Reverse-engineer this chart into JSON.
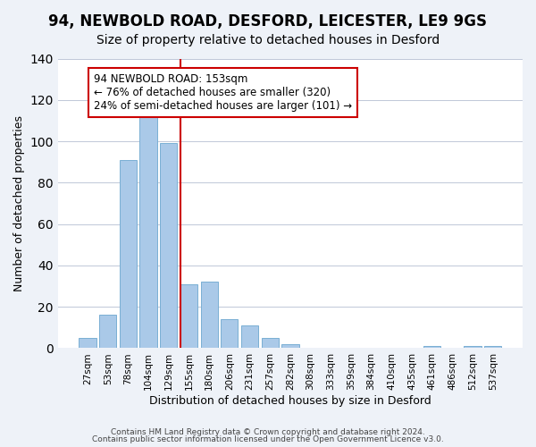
{
  "title": "94, NEWBOLD ROAD, DESFORD, LEICESTER, LE9 9GS",
  "subtitle": "Size of property relative to detached houses in Desford",
  "xlabel": "Distribution of detached houses by size in Desford",
  "ylabel": "Number of detached properties",
  "bar_labels": [
    "27sqm",
    "53sqm",
    "78sqm",
    "104sqm",
    "129sqm",
    "155sqm",
    "180sqm",
    "206sqm",
    "231sqm",
    "257sqm",
    "282sqm",
    "308sqm",
    "333sqm",
    "359sqm",
    "384sqm",
    "410sqm",
    "435sqm",
    "461sqm",
    "486sqm",
    "512sqm",
    "537sqm"
  ],
  "bar_values": [
    5,
    16,
    91,
    115,
    99,
    31,
    32,
    14,
    11,
    5,
    2,
    0,
    0,
    0,
    0,
    0,
    0,
    1,
    0,
    1,
    1
  ],
  "bar_color": "#aac9e8",
  "bar_edge_color": "#7aafd4",
  "vline_color": "#cc0000",
  "annotation_text": "94 NEWBOLD ROAD: 153sqm\n← 76% of detached houses are smaller (320)\n24% of semi-detached houses are larger (101) →",
  "annotation_box_color": "#ffffff",
  "annotation_box_edgecolor": "#cc0000",
  "annotation_fontsize": 8.5,
  "ylim": [
    0,
    140
  ],
  "footer1": "Contains HM Land Registry data © Crown copyright and database right 2024.",
  "footer2": "Contains public sector information licensed under the Open Government Licence v3.0.",
  "background_color": "#eef2f8",
  "plot_background_color": "#ffffff",
  "title_fontsize": 12,
  "subtitle_fontsize": 10,
  "xlabel_fontsize": 9,
  "ylabel_fontsize": 9
}
